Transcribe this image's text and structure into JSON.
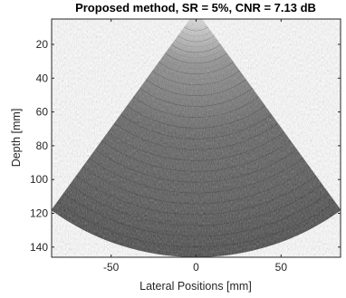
{
  "figure": {
    "title": "Proposed method, SR = 5%, CNR = 7.13 dB",
    "xlabel": "Lateral Positions [mm]",
    "ylabel": "Depth [mm]"
  },
  "chart_data": {
    "type": "heatmap",
    "title": "Proposed method, SR = 5%, CNR = 7.13 dB",
    "xlabel": "Lateral Positions [mm]",
    "ylabel": "Depth [mm]",
    "xlim": [
      -85,
      85
    ],
    "ylim": [
      146,
      5
    ],
    "y_axis_direction": "reversed",
    "colormap": "gray",
    "x_ticks": [
      -50,
      0,
      50
    ],
    "y_ticks": [
      20,
      40,
      60,
      80,
      100,
      120,
      140
    ],
    "x_tick_labels": [
      "-50",
      "0",
      "50"
    ],
    "y_tick_labels": [
      "20",
      "40",
      "60",
      "80",
      "100",
      "120",
      "140"
    ],
    "sector": {
      "apex_x": 0,
      "apex_y": 0,
      "max_radius": 146,
      "half_angle_deg": 36
    },
    "grid": false,
    "background": "#ffffff",
    "image_color": "#5a5a5a"
  }
}
